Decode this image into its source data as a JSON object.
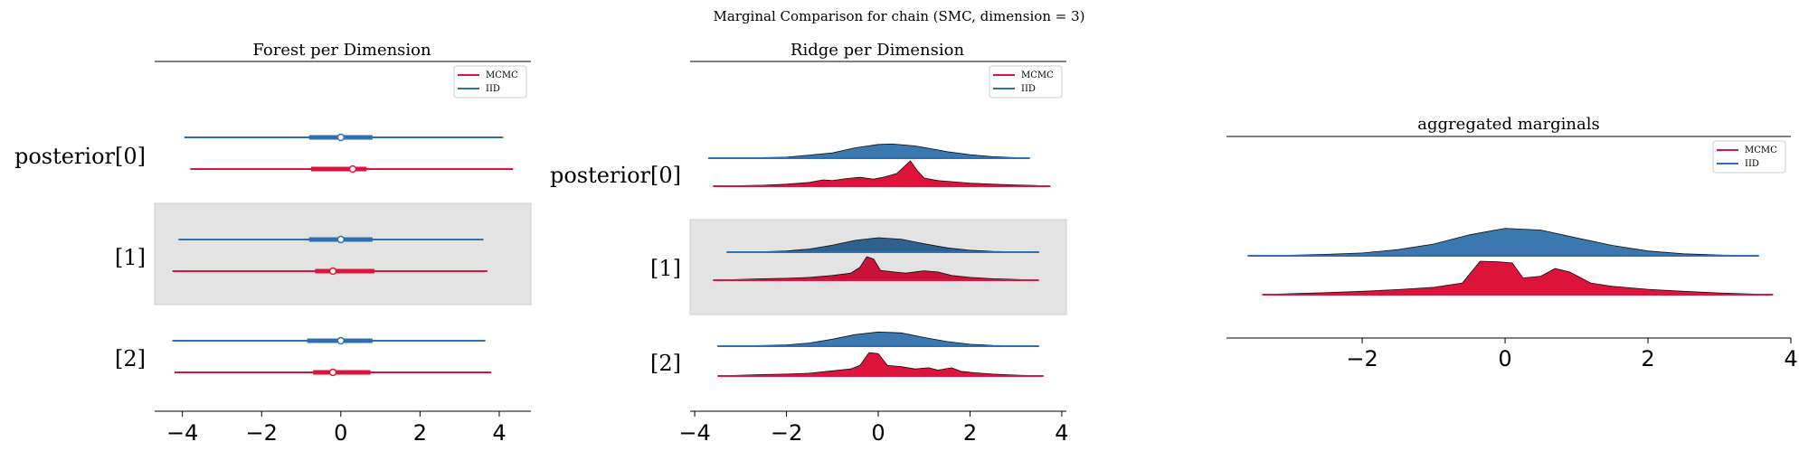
{
  "figure": {
    "title": "Marginal Comparison for chain (SMC, dimension = 3)"
  },
  "colors": {
    "mcmc": "#dc143c",
    "iid": "#2e6fb0",
    "iid_fill": "#3b78b0",
    "iid_fill_dark": "#2f618f",
    "mcmc_fill": "#dc143c",
    "mcmc_fill_dark": "#c81237",
    "band": "#e3e3e3"
  },
  "chart_data": [
    {
      "type": "forest",
      "title": "Forest per Dimension",
      "xlim": [
        -4.7,
        4.8
      ],
      "xticks": [
        -4,
        -2,
        0,
        2,
        4
      ],
      "xtick_labels": [
        "−4",
        "−2",
        "0",
        "2",
        "4"
      ],
      "legend": {
        "placement": "top-right",
        "entries": [
          "MCMC",
          "IID"
        ]
      },
      "rows": [
        {
          "label": "posterior[0]",
          "shaded": false,
          "series": [
            {
              "name": "IID",
              "hdi": [
                -3.95,
                4.1
              ],
              "iqr": [
                -0.8,
                0.8
              ],
              "median": 0.0
            },
            {
              "name": "MCMC",
              "hdi": [
                -3.8,
                4.35
              ],
              "iqr": [
                -0.75,
                0.65
              ],
              "median": 0.3
            }
          ]
        },
        {
          "label": "[1]",
          "shaded": true,
          "series": [
            {
              "name": "IID",
              "hdi": [
                -4.1,
                3.6
              ],
              "iqr": [
                -0.8,
                0.8
              ],
              "median": 0.0
            },
            {
              "name": "MCMC",
              "hdi": [
                -4.25,
                3.7
              ],
              "iqr": [
                -0.65,
                0.85
              ],
              "median": -0.2
            }
          ]
        },
        {
          "label": "[2]",
          "shaded": false,
          "series": [
            {
              "name": "IID",
              "hdi": [
                -4.25,
                3.65
              ],
              "iqr": [
                -0.85,
                0.8
              ],
              "median": 0.0
            },
            {
              "name": "MCMC",
              "hdi": [
                -4.2,
                3.8
              ],
              "iqr": [
                -0.7,
                0.75
              ],
              "median": -0.2
            }
          ]
        }
      ]
    },
    {
      "type": "ridge",
      "title": "Ridge per Dimension",
      "xlim": [
        -4.1,
        4.1
      ],
      "xticks": [
        -4,
        -2,
        0,
        2,
        4
      ],
      "xtick_labels": [
        "−4",
        "−2",
        "0",
        "2",
        "4"
      ],
      "legend": {
        "placement": "top-right",
        "entries": [
          "MCMC",
          "IID"
        ]
      },
      "rows": [
        {
          "label": "posterior[0]",
          "shaded": false,
          "series": [
            {
              "name": "IID",
              "range": [
                -3.7,
                3.3
              ],
              "x": [
                -3.7,
                -3.0,
                -2.0,
                -1.0,
                -0.5,
                0.0,
                0.3,
                0.8,
                1.5,
                2.0,
                2.5,
                3.0,
                3.3
              ],
              "y": [
                0.005,
                0.012,
                0.07,
                0.36,
                0.72,
                0.95,
                0.98,
                0.85,
                0.45,
                0.24,
                0.1,
                0.04,
                0.015
              ]
            },
            {
              "name": "MCMC",
              "range": [
                -3.6,
                3.75
              ],
              "x": [
                -3.6,
                -3.0,
                -2.5,
                -2.0,
                -1.5,
                -1.2,
                -1.0,
                -0.7,
                -0.4,
                -0.1,
                0.1,
                0.4,
                0.55,
                0.7,
                0.85,
                1.0,
                1.3,
                1.6,
                2.0,
                2.5,
                3.0,
                3.4,
                3.75
              ],
              "y": [
                0.0,
                0.02,
                0.04,
                0.08,
                0.15,
                0.25,
                0.22,
                0.3,
                0.35,
                0.28,
                0.35,
                0.5,
                0.75,
                1.0,
                0.62,
                0.32,
                0.22,
                0.18,
                0.12,
                0.08,
                0.05,
                0.03,
                0.0
              ]
            }
          ]
        },
        {
          "label": "[1]",
          "shaded": true,
          "series": [
            {
              "name": "IID",
              "range": [
                -3.3,
                3.5
              ],
              "x": [
                -3.3,
                -2.5,
                -2.0,
                -1.5,
                -1.0,
                -0.5,
                0.0,
                0.5,
                1.0,
                1.5,
                2.0,
                2.5,
                3.0,
                3.5
              ],
              "y": [
                0.004,
                0.03,
                0.08,
                0.22,
                0.48,
                0.82,
                1.0,
                0.9,
                0.58,
                0.3,
                0.13,
                0.05,
                0.02,
                0.005
              ]
            },
            {
              "name": "MCMC",
              "range": [
                -3.6,
                3.5
              ],
              "x": [
                -3.6,
                -3.0,
                -2.5,
                -2.0,
                -1.5,
                -1.0,
                -0.6,
                -0.4,
                -0.25,
                -0.1,
                0.05,
                0.3,
                0.6,
                1.0,
                1.3,
                1.6,
                2.0,
                2.5,
                3.0,
                3.5
              ],
              "y": [
                0.0,
                0.03,
                0.06,
                0.08,
                0.12,
                0.2,
                0.3,
                0.55,
                1.0,
                0.9,
                0.42,
                0.36,
                0.3,
                0.4,
                0.35,
                0.2,
                0.12,
                0.06,
                0.03,
                0.0
              ]
            }
          ]
        },
        {
          "label": "[2]",
          "shaded": false,
          "series": [
            {
              "name": "IID",
              "range": [
                -3.5,
                3.5
              ],
              "x": [
                -3.5,
                -3.0,
                -2.0,
                -1.5,
                -1.0,
                -0.5,
                0.0,
                0.5,
                1.0,
                1.5,
                2.0,
                2.5,
                3.0,
                3.5
              ],
              "y": [
                0.004,
                0.015,
                0.09,
                0.22,
                0.48,
                0.8,
                0.98,
                0.92,
                0.6,
                0.32,
                0.13,
                0.05,
                0.015,
                0.004
              ]
            },
            {
              "name": "MCMC",
              "range": [
                -3.5,
                3.6
              ],
              "x": [
                -3.5,
                -3.0,
                -2.5,
                -2.0,
                -1.5,
                -1.0,
                -0.6,
                -0.4,
                -0.2,
                0.0,
                0.2,
                0.5,
                0.8,
                1.1,
                1.3,
                1.6,
                1.8,
                2.1,
                2.5,
                3.0,
                3.6
              ],
              "y": [
                0.0,
                0.03,
                0.06,
                0.08,
                0.12,
                0.22,
                0.3,
                0.45,
                1.0,
                0.95,
                0.45,
                0.4,
                0.3,
                0.35,
                0.25,
                0.35,
                0.2,
                0.14,
                0.08,
                0.04,
                0.0
              ]
            }
          ]
        }
      ]
    },
    {
      "type": "ridge",
      "title": "aggregated marginals",
      "xlim": [
        -3.9,
        4.0
      ],
      "xticks": [
        -2,
        0,
        2,
        4
      ],
      "xtick_labels": [
        "−2",
        "0",
        "2",
        "4"
      ],
      "legend": {
        "placement": "top-right",
        "entries": [
          "MCMC",
          "IID"
        ]
      },
      "rows": [
        {
          "label": "",
          "shaded": false,
          "series": [
            {
              "name": "IID",
              "range": [
                -3.6,
                3.55
              ],
              "x": [
                -3.6,
                -3.0,
                -2.5,
                -2.0,
                -1.5,
                -1.0,
                -0.5,
                0.0,
                0.5,
                1.0,
                1.5,
                2.0,
                2.5,
                3.0,
                3.55
              ],
              "y": [
                0.005,
                0.02,
                0.05,
                0.1,
                0.22,
                0.42,
                0.75,
                0.98,
                0.92,
                0.64,
                0.37,
                0.17,
                0.07,
                0.025,
                0.005
              ]
            },
            {
              "name": "MCMC",
              "range": [
                -3.4,
                3.75
              ],
              "x": [
                -3.4,
                -3.0,
                -2.5,
                -2.0,
                -1.5,
                -1.0,
                -0.6,
                -0.35,
                -0.1,
                0.1,
                0.25,
                0.5,
                0.7,
                0.9,
                1.2,
                1.5,
                2.0,
                2.5,
                3.0,
                3.75
              ],
              "y": [
                0.0,
                0.03,
                0.06,
                0.1,
                0.15,
                0.22,
                0.35,
                1.0,
                0.98,
                0.95,
                0.5,
                0.55,
                0.78,
                0.68,
                0.35,
                0.25,
                0.16,
                0.1,
                0.05,
                0.0
              ]
            }
          ]
        }
      ]
    }
  ]
}
